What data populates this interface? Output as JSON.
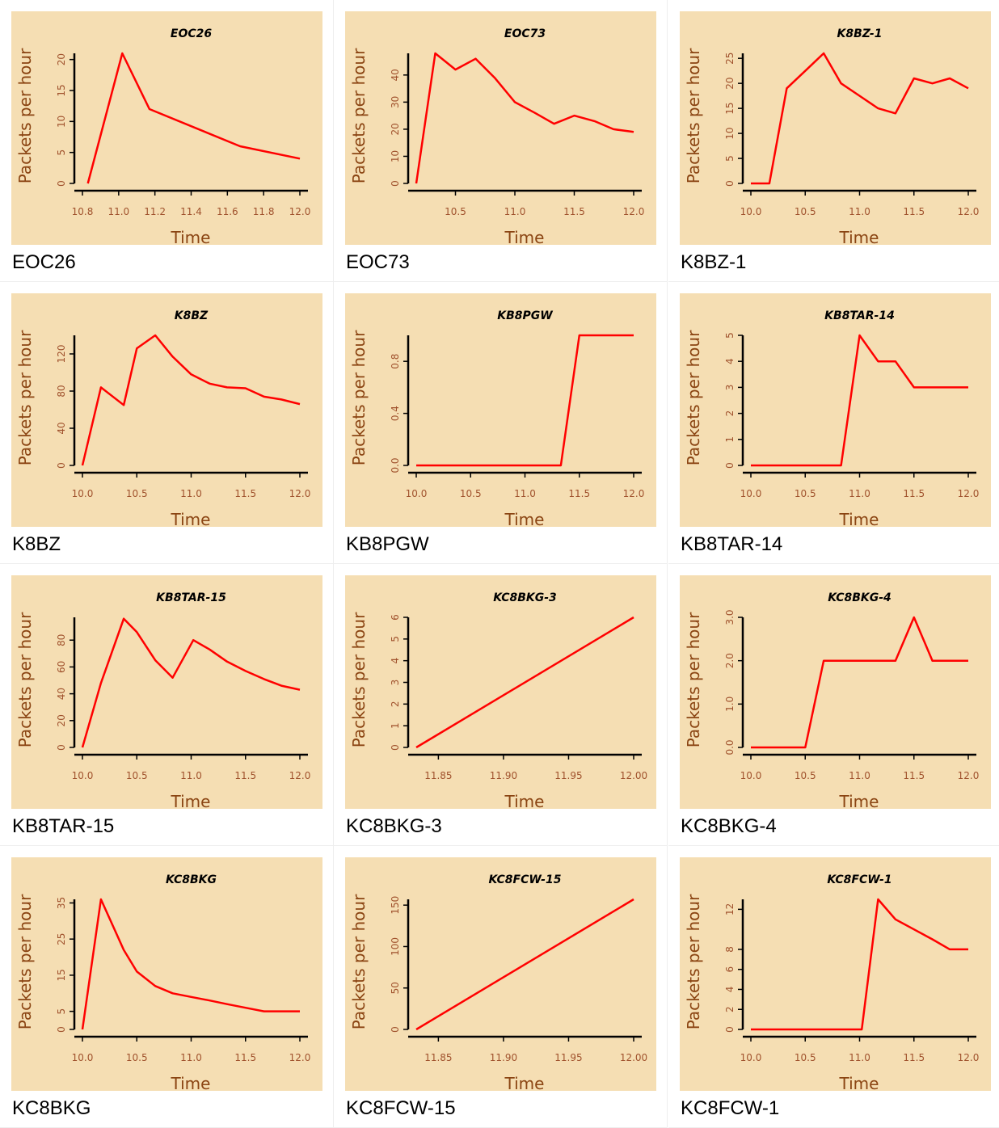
{
  "colors": {
    "panel_bg": "#f5deb3",
    "line": "#ff0000",
    "axis": "#000000",
    "label": "#8b4513",
    "tick": "#a0522d"
  },
  "chart_data": [
    {
      "type": "line",
      "caption": "EOC26",
      "title": "EOC26",
      "xlabel": "Time",
      "ylabel": "Packets per hour",
      "xlim": [
        10.8,
        12.0
      ],
      "ylim": [
        0,
        21
      ],
      "xticks": [
        "10.8",
        "11.0",
        "11.2",
        "11.4",
        "11.6",
        "11.8",
        "12.0"
      ],
      "yticks": [
        "0",
        "5",
        "10",
        "15",
        "20"
      ],
      "x": [
        10.83,
        11.02,
        11.17,
        11.67,
        12.0
      ],
      "y": [
        0,
        21,
        12,
        6,
        4
      ]
    },
    {
      "type": "line",
      "caption": "EOC73",
      "title": "EOC73",
      "xlabel": "Time",
      "ylabel": "Packets per hour",
      "xlim": [
        10.17,
        12.0
      ],
      "ylim": [
        0,
        48
      ],
      "xticks": [
        "10.5",
        "11.0",
        "11.5",
        "12.0"
      ],
      "yticks": [
        "0",
        "10",
        "20",
        "30",
        "40"
      ],
      "x": [
        10.17,
        10.33,
        10.5,
        10.67,
        10.83,
        11.0,
        11.17,
        11.33,
        11.5,
        11.67,
        11.83,
        12.0
      ],
      "y": [
        0,
        48,
        42,
        46,
        39,
        30,
        26,
        22,
        25,
        23,
        20,
        19
      ]
    },
    {
      "type": "line",
      "caption": "K8BZ-1",
      "title": "K8BZ-1",
      "xlabel": "Time",
      "ylabel": "Packets per hour",
      "xlim": [
        10.0,
        12.0
      ],
      "ylim": [
        0,
        26
      ],
      "xticks": [
        "10.0",
        "10.5",
        "11.0",
        "11.5",
        "12.0"
      ],
      "yticks": [
        "0",
        "5",
        "10",
        "15",
        "20",
        "25"
      ],
      "x": [
        10.0,
        10.17,
        10.33,
        10.5,
        10.67,
        10.83,
        11.0,
        11.17,
        11.33,
        11.5,
        11.67,
        11.83,
        12.0
      ],
      "y": [
        0,
        0,
        19,
        22.5,
        26,
        20,
        17.5,
        15,
        14,
        21,
        20,
        21,
        19
      ]
    },
    {
      "type": "line",
      "caption": "K8BZ",
      "title": "K8BZ",
      "xlabel": "Time",
      "ylabel": "Packets per hour",
      "xlim": [
        10.0,
        12.0
      ],
      "ylim": [
        0,
        140
      ],
      "xticks": [
        "10.0",
        "10.5",
        "11.0",
        "11.5",
        "12.0"
      ],
      "yticks": [
        "0",
        "40",
        "80",
        "120"
      ],
      "x": [
        10.0,
        10.17,
        10.38,
        10.5,
        10.67,
        10.83,
        11.0,
        11.17,
        11.33,
        11.5,
        11.67,
        11.83,
        12.0
      ],
      "y": [
        0,
        84,
        65,
        126,
        140,
        117,
        98,
        88,
        84,
        83,
        74,
        71,
        66
      ]
    },
    {
      "type": "line",
      "caption": "KB8PGW",
      "title": "KB8PGW",
      "xlabel": "Time",
      "ylabel": "Packets per hour",
      "xlim": [
        10.0,
        12.0
      ],
      "ylim": [
        0,
        1
      ],
      "xticks": [
        "10.0",
        "10.5",
        "11.0",
        "11.5",
        "12.0"
      ],
      "yticks": [
        "0.0",
        "0.4",
        "0.8"
      ],
      "x": [
        10.0,
        11.33,
        11.5,
        12.0
      ],
      "y": [
        0,
        0,
        1,
        1
      ]
    },
    {
      "type": "line",
      "caption": "KB8TAR-14",
      "title": "KB8TAR-14",
      "xlabel": "Time",
      "ylabel": "Packets per hour",
      "xlim": [
        10.0,
        12.0
      ],
      "ylim": [
        0,
        5
      ],
      "xticks": [
        "10.0",
        "10.5",
        "11.0",
        "11.5",
        "12.0"
      ],
      "yticks": [
        "0",
        "1",
        "2",
        "3",
        "4",
        "5"
      ],
      "x": [
        10.0,
        10.83,
        11.0,
        11.17,
        11.33,
        11.5,
        12.0
      ],
      "y": [
        0,
        0,
        5,
        4,
        4,
        3,
        3
      ]
    },
    {
      "type": "line",
      "caption": "KB8TAR-15",
      "title": "KB8TAR-15",
      "xlabel": "Time",
      "ylabel": "Packets per hour",
      "xlim": [
        10.0,
        12.0
      ],
      "ylim": [
        0,
        97
      ],
      "xticks": [
        "10.0",
        "10.5",
        "11.0",
        "11.5",
        "12.0"
      ],
      "yticks": [
        "0",
        "20",
        "40",
        "60",
        "80"
      ],
      "x": [
        10.0,
        10.17,
        10.38,
        10.5,
        10.67,
        10.83,
        11.02,
        11.17,
        11.33,
        11.5,
        11.67,
        11.83,
        12.0
      ],
      "y": [
        0,
        48,
        96,
        86,
        65,
        52,
        80,
        73,
        64,
        57,
        51,
        46,
        43
      ]
    },
    {
      "type": "line",
      "caption": "KC8BKG-3",
      "title": "KC8BKG-3",
      "xlabel": "Time",
      "ylabel": "Packets per hour",
      "xlim": [
        11.833,
        12.0
      ],
      "ylim": [
        0,
        6
      ],
      "xticks": [
        "11.85",
        "11.90",
        "11.95",
        "12.00"
      ],
      "yticks": [
        "0",
        "1",
        "2",
        "3",
        "4",
        "5",
        "6"
      ],
      "x": [
        11.833,
        12.0
      ],
      "y": [
        0,
        6
      ]
    },
    {
      "type": "line",
      "caption": "KC8BKG-4",
      "title": "KC8BKG-4",
      "xlabel": "Time",
      "ylabel": "Packets per hour",
      "xlim": [
        10.0,
        12.0
      ],
      "ylim": [
        0,
        3
      ],
      "xticks": [
        "10.0",
        "10.5",
        "11.0",
        "11.5",
        "12.0"
      ],
      "yticks": [
        "0.0",
        "1.0",
        "2.0",
        "3.0"
      ],
      "x": [
        10.0,
        10.5,
        10.67,
        11.33,
        11.5,
        11.67,
        12.0
      ],
      "y": [
        0,
        0,
        2,
        2,
        3,
        2,
        2
      ]
    },
    {
      "type": "line",
      "caption": "KC8BKG",
      "title": "KC8BKG",
      "xlabel": "Time",
      "ylabel": "Packets per hour",
      "xlim": [
        10.0,
        12.0
      ],
      "ylim": [
        0,
        36
      ],
      "xticks": [
        "10.0",
        "10.5",
        "11.0",
        "11.5",
        "12.0"
      ],
      "yticks": [
        "0",
        "5",
        "15",
        "25",
        "35"
      ],
      "x": [
        10.0,
        10.17,
        10.38,
        10.5,
        10.67,
        10.83,
        11.0,
        11.17,
        11.33,
        11.5,
        11.67,
        11.83,
        12.0
      ],
      "y": [
        0,
        36,
        22,
        16,
        12,
        10,
        9,
        8,
        7,
        6,
        5,
        5,
        5
      ]
    },
    {
      "type": "line",
      "caption": "KC8FCW-15",
      "title": "KC8FCW-15",
      "xlabel": "Time",
      "ylabel": "Packets per hour",
      "xlim": [
        11.833,
        12.0
      ],
      "ylim": [
        0,
        157
      ],
      "xticks": [
        "11.85",
        "11.90",
        "11.95",
        "12.00"
      ],
      "yticks": [
        "0",
        "50",
        "100",
        "150"
      ],
      "x": [
        11.833,
        12.0
      ],
      "y": [
        0,
        157
      ]
    },
    {
      "type": "line",
      "caption": "KC8FCW-1",
      "title": "KC8FCW-1",
      "xlabel": "Time",
      "ylabel": "Packets per hour",
      "xlim": [
        10.0,
        12.0
      ],
      "ylim": [
        0,
        13
      ],
      "xticks": [
        "10.0",
        "10.5",
        "11.0",
        "11.5",
        "12.0"
      ],
      "yticks": [
        "0",
        "2",
        "4",
        "6",
        "8",
        "12"
      ],
      "x": [
        10.0,
        11.02,
        11.17,
        11.33,
        11.5,
        11.67,
        11.83,
        12.0
      ],
      "y": [
        0,
        0,
        13,
        11,
        10,
        9,
        8,
        8
      ]
    }
  ]
}
